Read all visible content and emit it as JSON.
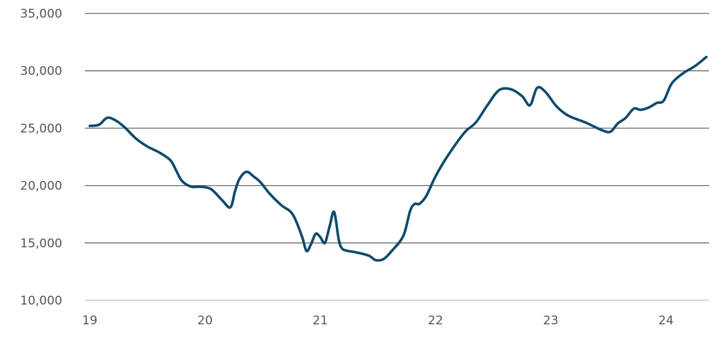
{
  "chart_data": {
    "type": "line",
    "title": "",
    "xlabel": "",
    "ylabel": "",
    "grid": true,
    "legend": "none",
    "line_color": "#0d4a6b",
    "grid_color": "#6a6a6a",
    "baseline_color": "#b9cfdf",
    "xlim": [
      19,
      24.36
    ],
    "ylim": [
      10000,
      35000
    ],
    "x_ticks": [
      19,
      20,
      21,
      22,
      23,
      24
    ],
    "x_tick_labels": [
      "19",
      "20",
      "21",
      "22",
      "23",
      "24"
    ],
    "y_ticks": [
      10000,
      15000,
      20000,
      25000,
      30000,
      35000
    ],
    "y_tick_labels": [
      "10,000",
      "15,000",
      "20,000",
      "25,000",
      "30,000",
      "35,000"
    ],
    "series": [
      {
        "x": [
          19.0,
          19.08,
          19.15,
          19.22,
          19.3,
          19.4,
          19.5,
          19.6,
          19.7,
          19.75,
          19.8,
          19.88,
          19.95,
          20.05,
          20.15,
          20.22,
          20.26,
          20.3,
          20.36,
          20.42,
          20.48,
          20.56,
          20.66,
          20.76,
          20.84,
          20.88,
          20.92,
          20.96,
          21.0,
          21.04,
          21.08,
          21.12,
          21.16,
          21.19,
          21.24,
          21.3,
          21.42,
          21.48,
          21.55,
          21.62,
          21.72,
          21.78,
          21.82,
          21.86,
          21.92,
          22.0,
          22.1,
          22.25,
          22.35,
          22.45,
          22.55,
          22.65,
          22.75,
          22.82,
          22.88,
          22.95,
          23.05,
          23.15,
          23.3,
          23.45,
          23.52,
          23.58,
          23.65,
          23.72,
          23.78,
          23.85,
          23.92,
          23.98,
          24.05,
          24.15,
          24.25,
          24.35
        ],
        "values": [
          25200,
          25300,
          25900,
          25700,
          25100,
          24100,
          23400,
          22900,
          22200,
          21300,
          20400,
          19900,
          19900,
          19700,
          18700,
          18100,
          19500,
          20600,
          21200,
          20800,
          20300,
          19300,
          18300,
          17500,
          15600,
          14300,
          14900,
          15800,
          15500,
          15000,
          16400,
          17700,
          15300,
          14500,
          14300,
          14200,
          13900,
          13500,
          13600,
          14300,
          15600,
          17800,
          18400,
          18400,
          19100,
          20800,
          22500,
          24600,
          25500,
          27000,
          28300,
          28400,
          27800,
          27000,
          28500,
          28200,
          26900,
          26100,
          25500,
          24800,
          24700,
          25400,
          25900,
          26700,
          26600,
          26800,
          27200,
          27400,
          28900,
          29800,
          30400,
          31200
        ]
      }
    ]
  }
}
